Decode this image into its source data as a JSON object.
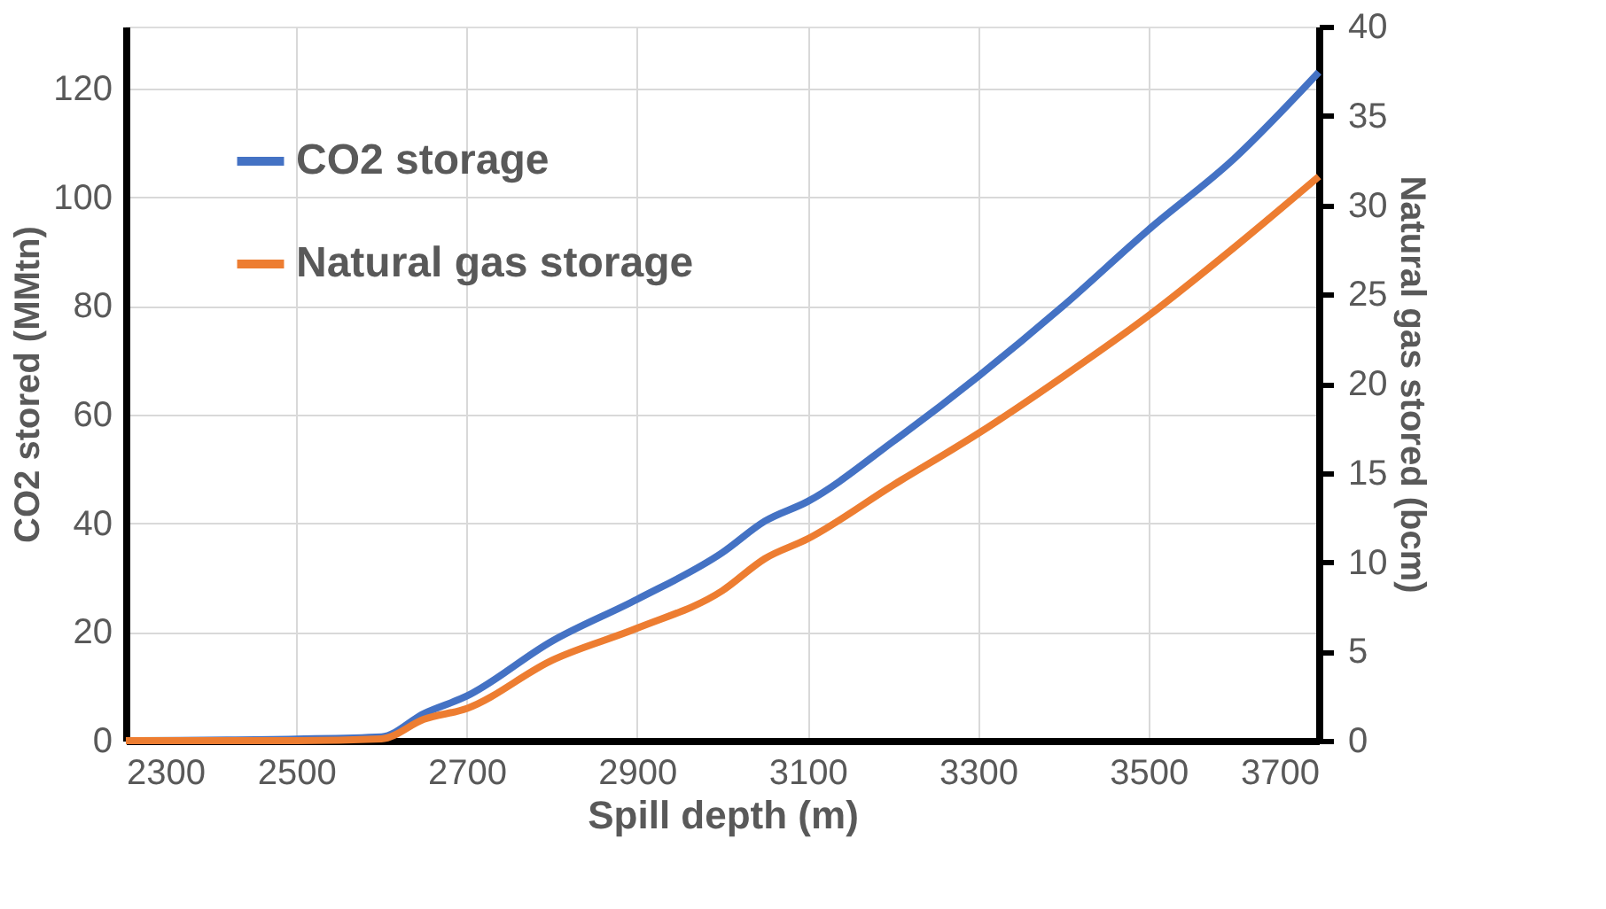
{
  "chart_data": {
    "type": "line",
    "xlabel": "Spill depth (m)",
    "ylabel": "CO2 stored (MMtn)",
    "y2label": "Natural gas stored (bcm)",
    "x": [
      2300,
      2500,
      2600,
      2650,
      2700,
      2800,
      2900,
      3000,
      3050,
      3100,
      3200,
      3300,
      3400,
      3500,
      3600,
      3700
    ],
    "series": [
      {
        "name": "CO2 storage",
        "color": "#4472c4",
        "values": [
          0,
          0.3,
          0.7,
          5,
          8.2,
          18.3,
          26,
          34.6,
          40.4,
          44,
          55,
          67,
          80,
          94,
          107,
          123
        ]
      },
      {
        "name": "Natural gas storage",
        "color": "#ed7d31",
        "axis": "y2",
        "values": [
          0,
          0,
          0.1,
          1.2,
          1.8,
          4.5,
          6.3,
          8.4,
          10.2,
          11.3,
          14.3,
          17.2,
          20.4,
          23.8,
          27.6,
          31.6
        ]
      }
    ],
    "xlim": [
      2300,
      3700
    ],
    "xticks": [
      2300,
      2500,
      2700,
      2900,
      3100,
      3300,
      3500,
      3700
    ],
    "ylim": [
      0,
      131.4
    ],
    "yticks": [
      0,
      20,
      40,
      60,
      80,
      100,
      120
    ],
    "y2lim": [
      0,
      40
    ],
    "y2ticks": [
      0,
      5,
      10,
      15,
      20,
      25,
      30,
      35,
      40
    ],
    "grid": true,
    "legend": "top left",
    "marker": "none",
    "line_style": "solid"
  }
}
